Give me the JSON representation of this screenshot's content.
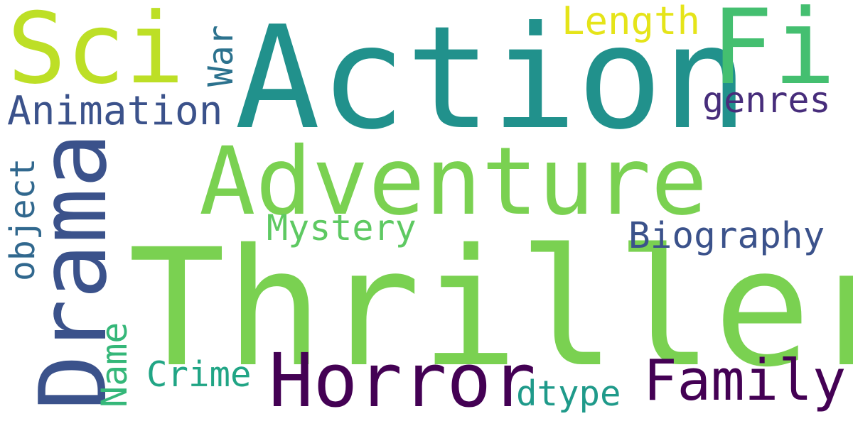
{
  "words": {
    "thriller": {
      "text": "Thriller",
      "color": "#7AD151"
    },
    "action": {
      "text": "Action",
      "color": "#21918C"
    },
    "adventure": {
      "text": "Adventure",
      "color": "#7AD151"
    },
    "drama": {
      "text": "Drama",
      "color": "#3B528B"
    },
    "sci": {
      "text": "Sci",
      "color": "#BDDF26"
    },
    "fi": {
      "text": "Fi",
      "color": "#44BF70"
    },
    "horror": {
      "text": "Horror",
      "color": "#440154"
    },
    "family": {
      "text": "Family",
      "color": "#440154"
    },
    "animation": {
      "text": "Animation",
      "color": "#3B528B"
    },
    "length": {
      "text": "Length",
      "color": "#E5E419"
    },
    "genres": {
      "text": "genres",
      "color": "#472D7B"
    },
    "mystery": {
      "text": "Mystery",
      "color": "#5EC962"
    },
    "biography": {
      "text": "Biography",
      "color": "#3B528B"
    },
    "war": {
      "text": "War",
      "color": "#2C728E"
    },
    "object": {
      "text": "object",
      "color": "#31688E"
    },
    "name": {
      "text": "Name",
      "color": "#35B779"
    },
    "crime": {
      "text": "Crime",
      "color": "#21A585"
    },
    "dtype": {
      "text": "dtype",
      "color": "#1F9A8A"
    }
  }
}
